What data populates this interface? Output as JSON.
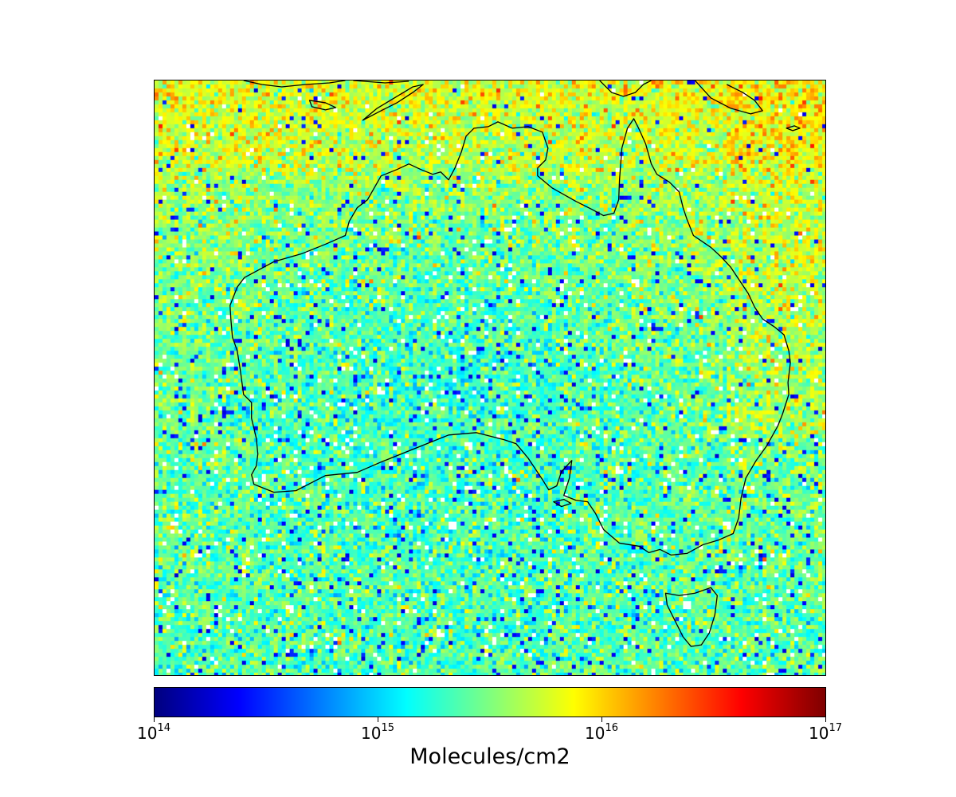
{
  "chart_data": {
    "type": "heatmap",
    "description_of_field": "",
    "colorbar": {
      "label": "Molecules/cm2",
      "scale": "log",
      "colormap": "jet",
      "range": [
        100000000000000.0,
        1e+17
      ],
      "ticks": [
        {
          "base": "10",
          "exponent": "14",
          "value": 100000000000000.0
        },
        {
          "base": "10",
          "exponent": "15",
          "value": 1000000000000000.0
        },
        {
          "base": "10",
          "exponent": "16",
          "value": 1e+16
        },
        {
          "base": "10",
          "exponent": "17",
          "value": 1e+17
        }
      ]
    },
    "colors": {
      "jet_stops": [
        "#00007f",
        "#0000ff",
        "#007fff",
        "#00e5f7",
        "#7fff7f",
        "#f7ff00",
        "#ff7f00",
        "#ff0000",
        "#7f0000"
      ],
      "missing": "#ffffff",
      "coastline": "#000000"
    }
  }
}
